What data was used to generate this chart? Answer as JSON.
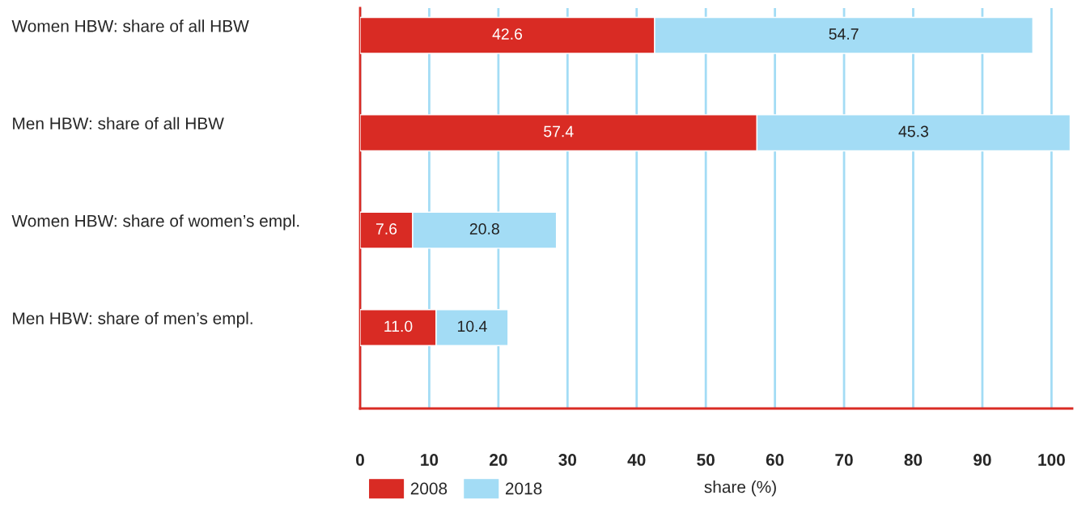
{
  "chart_data": {
    "type": "bar",
    "orientation": "horizontal",
    "stacked": true,
    "categories": [
      "Women HBW: share of all HBW",
      "Men HBW: share of all HBW",
      "Women HBW: share of women’s empl.",
      "Men HBW: share of men’s empl."
    ],
    "series": [
      {
        "name": "2008",
        "color": "#d92b24",
        "values": [
          42.6,
          57.4,
          7.6,
          11.0
        ],
        "value_labels": [
          "42.6",
          "57.4",
          "7.6",
          "11.0"
        ]
      },
      {
        "name": "2018",
        "color": "#a3dcf5",
        "values": [
          54.7,
          45.3,
          20.8,
          10.4
        ],
        "value_labels": [
          "54.7",
          "45.3",
          "20.8",
          "10.4"
        ]
      }
    ],
    "xlim": [
      0,
      103
    ],
    "xticks": [
      0,
      10,
      20,
      30,
      40,
      50,
      60,
      70,
      80,
      90,
      100
    ],
    "xlabel": "share (%)",
    "grid": "x",
    "legend": "bottom left"
  }
}
